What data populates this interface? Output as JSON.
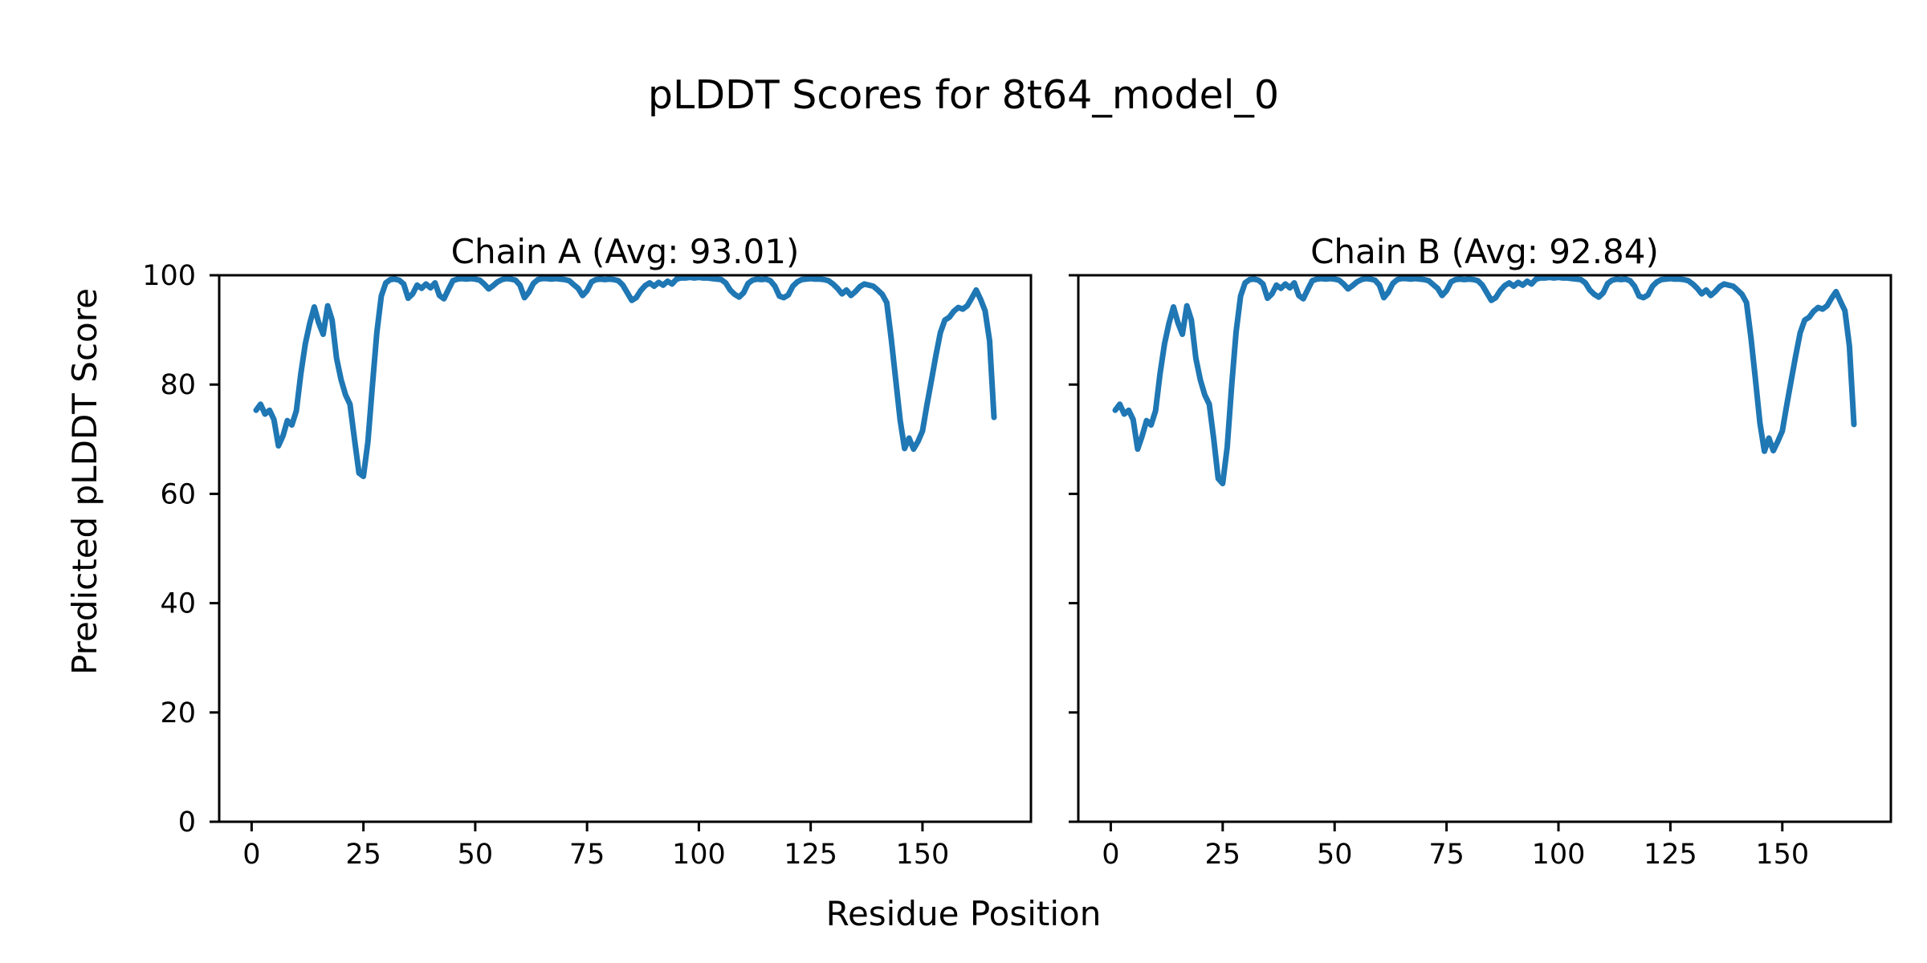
{
  "figure": {
    "title": "pLDDT Scores for 8t64_model_0",
    "xlabel": "Residue Position",
    "ylabel": "Predicted pLDDT Score",
    "background": "#ffffff",
    "text_color": "#000000",
    "spine_color": "#000000",
    "line_color": "#1f77b4"
  },
  "chart_data": [
    {
      "type": "line",
      "title": "Chain A (Avg: 93.01)",
      "series_name": "Chain A",
      "avg": 93.01,
      "xlabel": "Residue Position",
      "ylabel": "Predicted pLDDT Score",
      "xlim": [
        -7.25,
        174.25
      ],
      "ylim": [
        0,
        100
      ],
      "xticks": [
        0,
        25,
        50,
        75,
        100,
        125,
        150
      ],
      "yticks": [
        0,
        20,
        40,
        60,
        80,
        100
      ],
      "show_ytick_labels": true,
      "grid": false,
      "legend": "none",
      "x_start": 1,
      "values": [
        75.3,
        76.4,
        74.6,
        75.3,
        73.6,
        68.8,
        70.6,
        73.4,
        72.6,
        75.2,
        82.0,
        87.4,
        91.2,
        94.2,
        91.3,
        89.2,
        94.4,
        91.8,
        84.8,
        80.9,
        78.1,
        76.4,
        70.0,
        63.8,
        63.2,
        69.5,
        79.8,
        89.6,
        96.2,
        98.6,
        99.2,
        99.3,
        99.1,
        98.4,
        95.8,
        96.6,
        98.2,
        97.6,
        98.4,
        97.7,
        98.6,
        96.3,
        95.7,
        97.4,
        99.0,
        99.3,
        99.4,
        99.3,
        99.4,
        99.3,
        99.1,
        98.4,
        97.5,
        98.1,
        98.8,
        99.2,
        99.4,
        99.3,
        99.1,
        98.2,
        95.9,
        96.9,
        98.5,
        99.2,
        99.4,
        99.4,
        99.3,
        99.4,
        99.3,
        99.2,
        99.0,
        98.3,
        97.6,
        96.3,
        97.2,
        98.8,
        99.2,
        99.3,
        99.2,
        99.3,
        99.2,
        99.0,
        98.2,
        96.8,
        95.4,
        95.9,
        97.2,
        98.1,
        98.6,
        98.0,
        98.7,
        98.2,
        98.9,
        98.4,
        99.3,
        99.5,
        99.5,
        99.6,
        99.5,
        99.6,
        99.5,
        99.5,
        99.4,
        99.3,
        99.2,
        98.6,
        97.3,
        96.5,
        96.0,
        96.8,
        98.5,
        99.1,
        99.3,
        99.2,
        99.3,
        99.0,
        98.0,
        96.2,
        95.9,
        96.4,
        98.0,
        98.8,
        99.2,
        99.3,
        99.4,
        99.3,
        99.3,
        99.2,
        99.0,
        98.4,
        97.6,
        96.6,
        97.3,
        96.3,
        97.0,
        97.9,
        98.4,
        98.2,
        98.0,
        97.3,
        96.5,
        95.0,
        88.5,
        81.0,
        73.5,
        68.3,
        70.2,
        68.2,
        69.6,
        71.5,
        76.3,
        80.8,
        85.3,
        89.5,
        91.8,
        92.3,
        93.4,
        94.1,
        93.8,
        94.4,
        95.8,
        97.3,
        95.6,
        93.5,
        88.0,
        74.0
      ]
    },
    {
      "type": "line",
      "title": "Chain B (Avg: 92.84)",
      "series_name": "Chain B",
      "avg": 92.84,
      "xlabel": "Residue Position",
      "ylabel": "Predicted pLDDT Score",
      "xlim": [
        -7.25,
        174.25
      ],
      "ylim": [
        0,
        100
      ],
      "xticks": [
        0,
        25,
        50,
        75,
        100,
        125,
        150
      ],
      "yticks": [
        0,
        20,
        40,
        60,
        80,
        100
      ],
      "show_ytick_labels": false,
      "grid": false,
      "legend": "none",
      "x_start": 1,
      "values": [
        75.3,
        76.4,
        74.6,
        75.3,
        73.6,
        68.2,
        70.6,
        73.4,
        72.6,
        75.2,
        82.0,
        87.4,
        91.2,
        94.2,
        91.3,
        89.2,
        94.4,
        91.8,
        84.8,
        80.9,
        78.1,
        76.4,
        70.0,
        62.8,
        61.9,
        68.5,
        79.8,
        89.6,
        96.2,
        98.6,
        99.2,
        99.3,
        99.1,
        98.4,
        95.8,
        96.6,
        98.2,
        97.6,
        98.4,
        97.7,
        98.6,
        96.3,
        95.7,
        97.4,
        99.0,
        99.3,
        99.4,
        99.3,
        99.4,
        99.3,
        99.1,
        98.4,
        97.5,
        98.1,
        98.8,
        99.2,
        99.4,
        99.3,
        99.1,
        98.2,
        95.9,
        96.9,
        98.5,
        99.2,
        99.4,
        99.4,
        99.3,
        99.4,
        99.3,
        99.2,
        99.0,
        98.3,
        97.6,
        96.3,
        97.2,
        98.8,
        99.2,
        99.3,
        99.2,
        99.3,
        99.2,
        99.0,
        98.2,
        96.8,
        95.4,
        95.9,
        97.2,
        98.1,
        98.6,
        98.0,
        98.7,
        98.2,
        98.9,
        98.4,
        99.3,
        99.5,
        99.5,
        99.6,
        99.5,
        99.6,
        99.5,
        99.5,
        99.4,
        99.3,
        99.2,
        98.6,
        97.3,
        96.5,
        96.0,
        96.8,
        98.5,
        99.1,
        99.3,
        99.2,
        99.3,
        99.0,
        98.0,
        96.2,
        95.9,
        96.4,
        98.0,
        98.8,
        99.2,
        99.3,
        99.4,
        99.3,
        99.3,
        99.2,
        99.0,
        98.4,
        97.6,
        96.6,
        97.3,
        96.3,
        97.0,
        97.9,
        98.4,
        98.2,
        98.0,
        97.3,
        96.5,
        95.0,
        88.5,
        81.0,
        73.0,
        67.8,
        70.2,
        67.9,
        69.6,
        71.5,
        76.3,
        80.8,
        85.3,
        89.5,
        91.8,
        92.3,
        93.4,
        94.1,
        93.8,
        94.4,
        95.8,
        97.0,
        95.2,
        93.5,
        87.0,
        72.7
      ]
    }
  ]
}
